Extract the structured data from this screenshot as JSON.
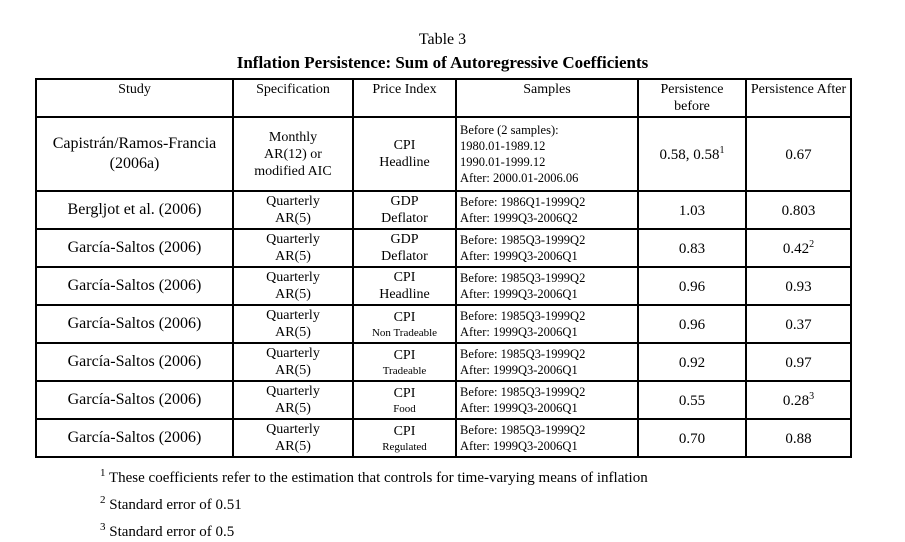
{
  "page": {
    "title": "Table 3",
    "subtitle": "Inflation Persistence: Sum of Autoregressive Coefficients"
  },
  "table": {
    "headers": [
      {
        "label": "Study"
      },
      {
        "label": "Specification"
      },
      {
        "label": "Price Index"
      },
      {
        "label": "Samples"
      },
      {
        "label": "Persistence before"
      },
      {
        "label": "Persistence After"
      }
    ],
    "rows": [
      {
        "study": "Capistrán/Ramos-Francia (2006a)",
        "specification": "Monthly\nAR(12) or\nmodified AIC",
        "price_index_main": "CPI",
        "price_index_sub": "Headline",
        "price_index_sub_small": false,
        "samples": "Before (2 samples):\n1980.01-1989.12\n1990.01-1999.12\nAfter: 2000.01-2006.06",
        "before_value": "0.58, 0.58",
        "before_sup": "1",
        "after_value": "0.67",
        "after_sup": ""
      },
      {
        "study": "Bergljot et al. (2006)",
        "specification": "Quarterly\nAR(5)",
        "price_index_main": "GDP",
        "price_index_sub": "Deflator",
        "price_index_sub_small": false,
        "samples": "Before: 1986Q1-1999Q2\nAfter: 1999Q3-2006Q2",
        "before_value": "1.03",
        "before_sup": "",
        "after_value": "0.803",
        "after_sup": ""
      },
      {
        "study": "García-Saltos (2006)",
        "specification": "Quarterly\nAR(5)",
        "price_index_main": "GDP",
        "price_index_sub": "Deflator",
        "price_index_sub_small": false,
        "samples": "Before: 1985Q3-1999Q2\nAfter: 1999Q3-2006Q1",
        "before_value": "0.83",
        "before_sup": "",
        "after_value": "0.42",
        "after_sup": "2"
      },
      {
        "study": "García-Saltos (2006)",
        "specification": "Quarterly\nAR(5)",
        "price_index_main": "CPI",
        "price_index_sub": "Headline",
        "price_index_sub_small": false,
        "samples": "Before: 1985Q3-1999Q2\nAfter: 1999Q3-2006Q1",
        "before_value": "0.96",
        "before_sup": "",
        "after_value": "0.93",
        "after_sup": ""
      },
      {
        "study": "García-Saltos (2006)",
        "specification": "Quarterly\nAR(5)",
        "price_index_main": "CPI",
        "price_index_sub": "Non Tradeable",
        "price_index_sub_small": true,
        "samples": "Before: 1985Q3-1999Q2\nAfter: 1999Q3-2006Q1",
        "before_value": "0.96",
        "before_sup": "",
        "after_value": "0.37",
        "after_sup": ""
      },
      {
        "study": "García-Saltos (2006)",
        "specification": "Quarterly\nAR(5)",
        "price_index_main": "CPI",
        "price_index_sub": "Tradeable",
        "price_index_sub_small": true,
        "samples": "Before: 1985Q3-1999Q2\nAfter: 1999Q3-2006Q1",
        "before_value": "0.92",
        "before_sup": "",
        "after_value": "0.97",
        "after_sup": ""
      },
      {
        "study": "García-Saltos (2006)",
        "specification": "Quarterly\nAR(5)",
        "price_index_main": "CPI",
        "price_index_sub": "Food",
        "price_index_sub_small": true,
        "samples": "Before: 1985Q3-1999Q2\nAfter: 1999Q3-2006Q1",
        "before_value": "0.55",
        "before_sup": "",
        "after_value": "0.28",
        "after_sup": "3"
      },
      {
        "study": "García-Saltos (2006)",
        "specification": "Quarterly\nAR(5)",
        "price_index_main": "CPI",
        "price_index_sub": "Regulated",
        "price_index_sub_small": true,
        "samples": "Before: 1985Q3-1999Q2\nAfter: 1999Q3-2006Q1",
        "before_value": "0.70",
        "before_sup": "",
        "after_value": "0.88",
        "after_sup": ""
      }
    ],
    "footnotes": [
      {
        "sup": "1",
        "text": "These coefficients refer to the estimation that controls for time-varying means of inflation"
      },
      {
        "sup": "2",
        "text": "Standard error of 0.51"
      },
      {
        "sup": "3",
        "text": "Standard error of 0.5"
      }
    ]
  }
}
